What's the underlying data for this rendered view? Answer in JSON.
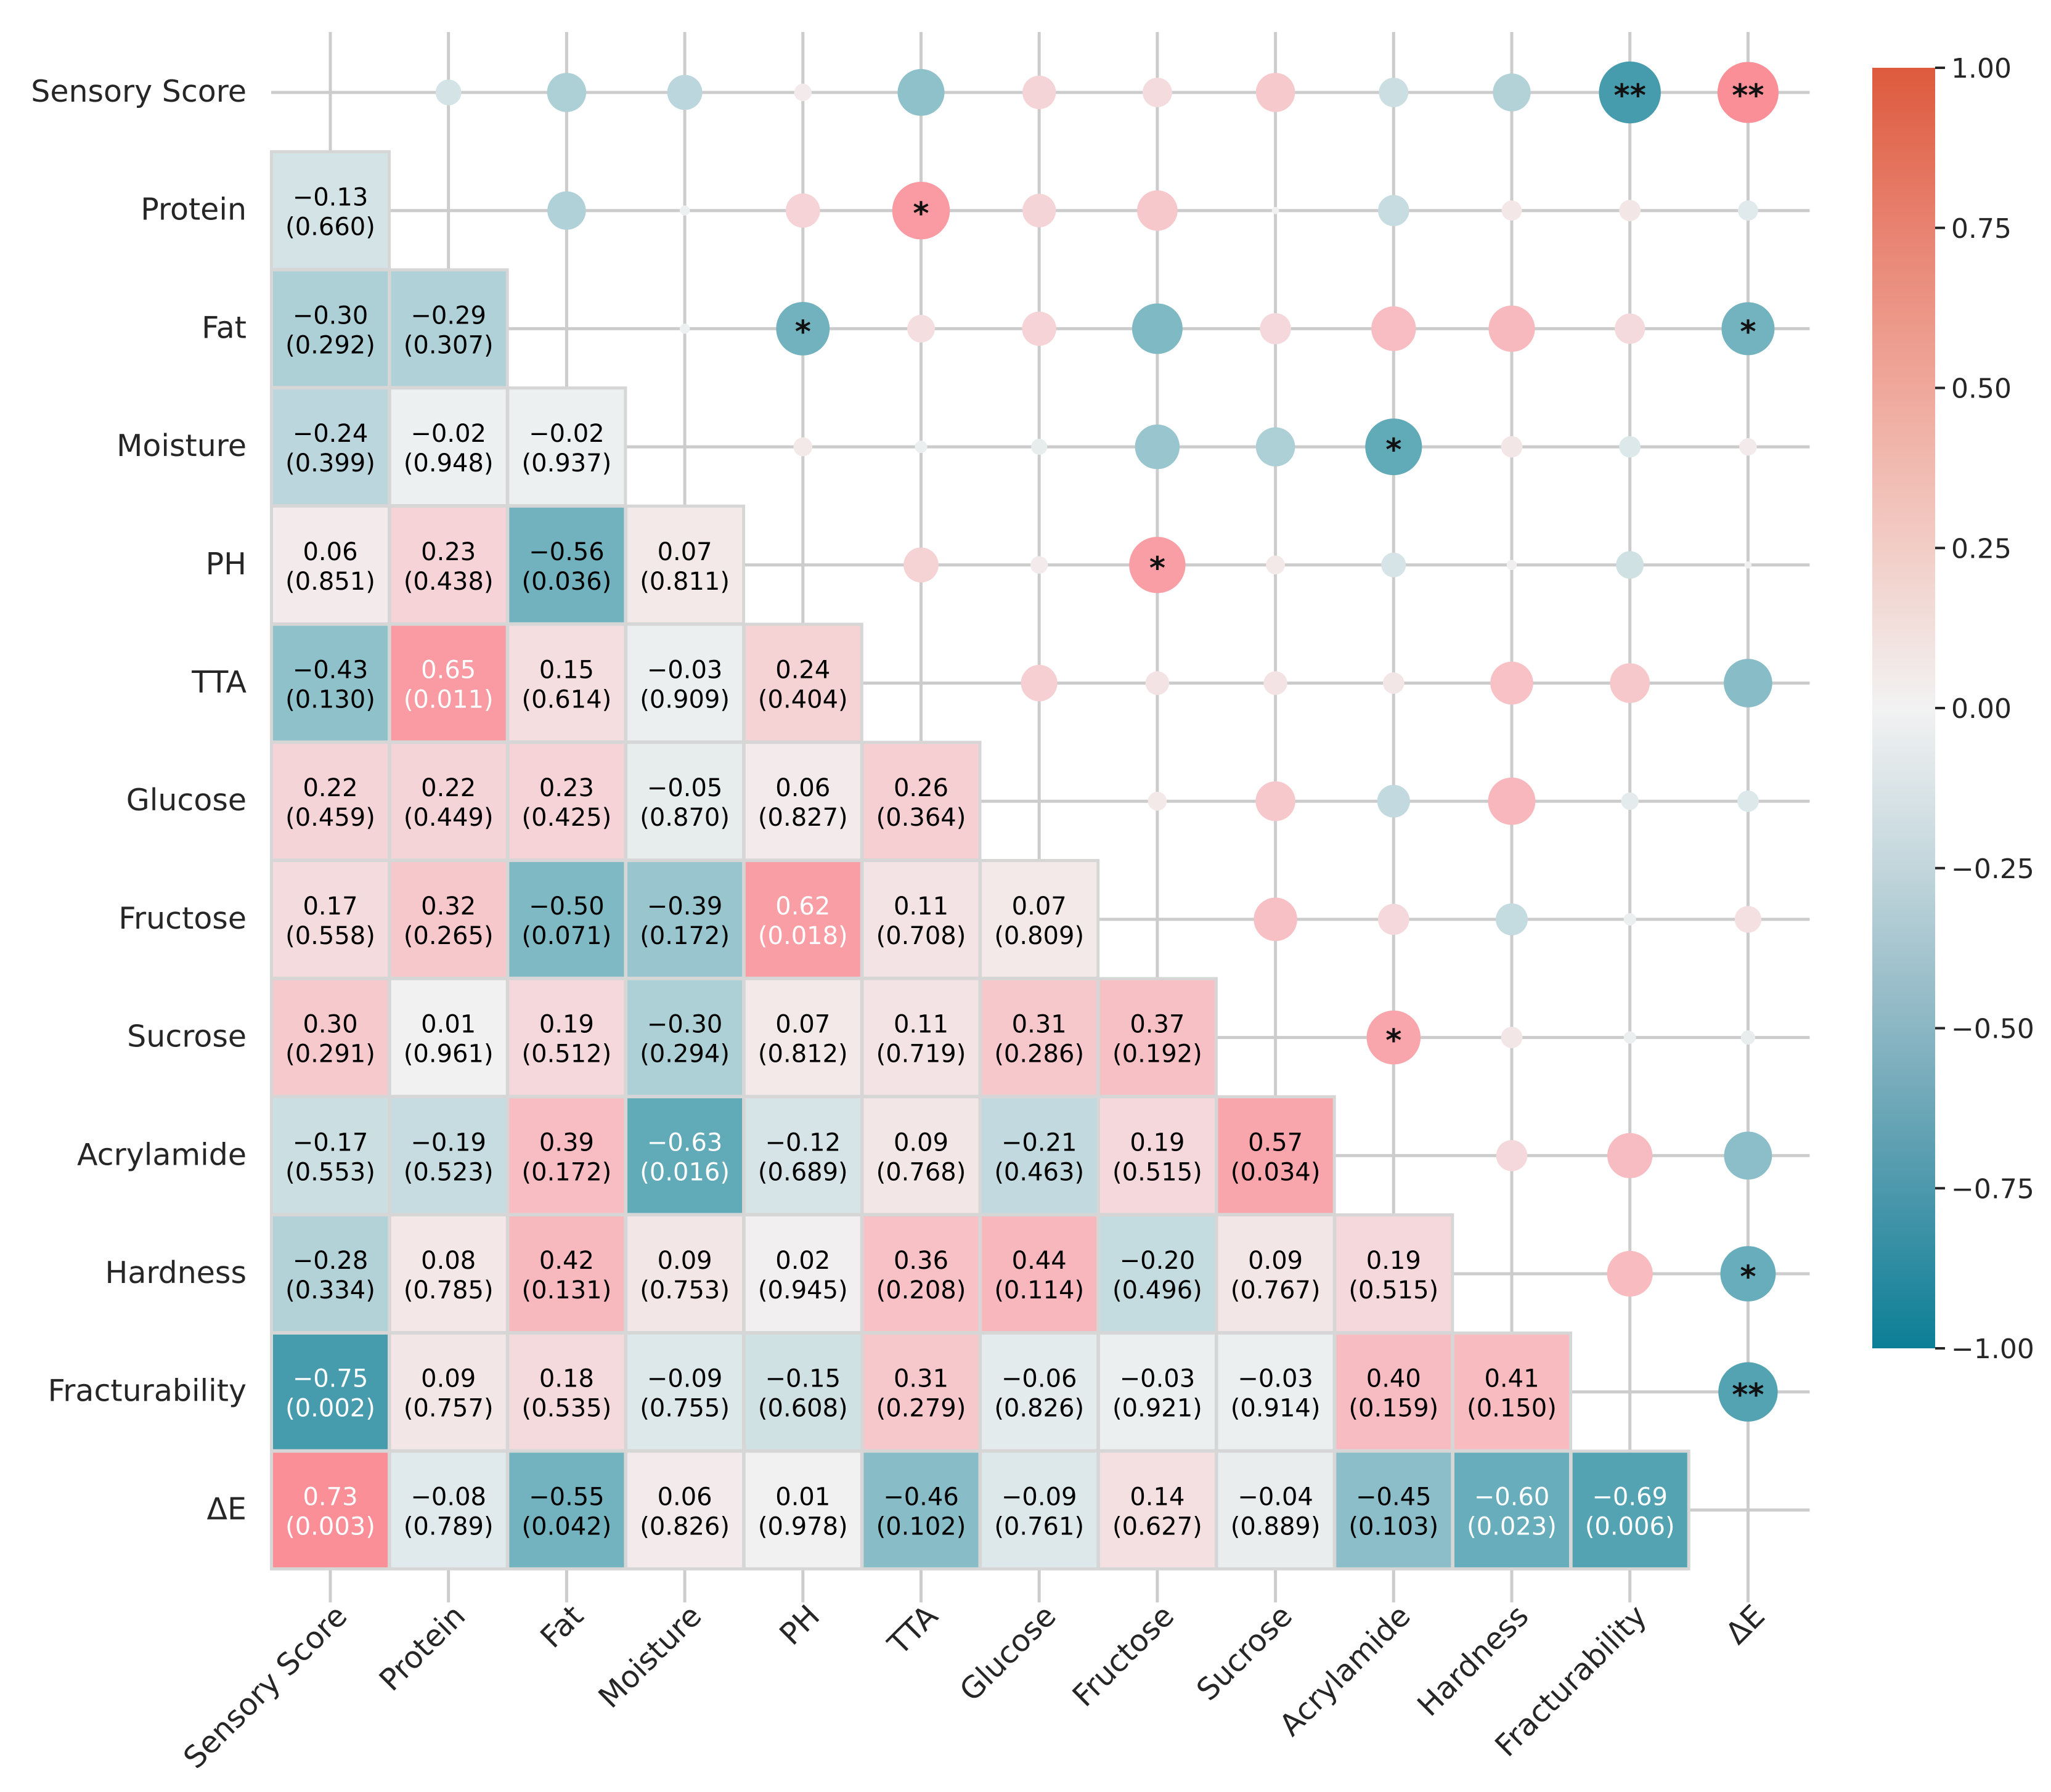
{
  "chart_data": {
    "type": "heatmap",
    "title": "",
    "variables": [
      "Sensory Score",
      "Protein",
      "Fat",
      "Moisture",
      "PH",
      "TTA",
      "Glucose",
      "Fructose",
      "Sucrose",
      "Acrylamide",
      "Hardness",
      "Fracturability",
      "ΔE"
    ],
    "lower_cells": [
      {
        "row": 1,
        "col": 0,
        "r": "−0.13",
        "p": "(0.660)"
      },
      {
        "row": 2,
        "col": 0,
        "r": "−0.30",
        "p": "(0.292)"
      },
      {
        "row": 2,
        "col": 1,
        "r": "−0.29",
        "p": "(0.307)"
      },
      {
        "row": 3,
        "col": 0,
        "r": "−0.24",
        "p": "(0.399)"
      },
      {
        "row": 3,
        "col": 1,
        "r": "−0.02",
        "p": "(0.948)"
      },
      {
        "row": 3,
        "col": 2,
        "r": "−0.02",
        "p": "(0.937)"
      },
      {
        "row": 4,
        "col": 0,
        "r": "0.06",
        "p": "(0.851)"
      },
      {
        "row": 4,
        "col": 1,
        "r": "0.23",
        "p": "(0.438)"
      },
      {
        "row": 4,
        "col": 2,
        "r": "−0.56",
        "p": "(0.036)"
      },
      {
        "row": 4,
        "col": 3,
        "r": "0.07",
        "p": "(0.811)"
      },
      {
        "row": 5,
        "col": 0,
        "r": "−0.43",
        "p": "(0.130)"
      },
      {
        "row": 5,
        "col": 1,
        "r": "0.65",
        "p": "(0.011)"
      },
      {
        "row": 5,
        "col": 2,
        "r": "0.15",
        "p": "(0.614)"
      },
      {
        "row": 5,
        "col": 3,
        "r": "−0.03",
        "p": "(0.909)"
      },
      {
        "row": 5,
        "col": 4,
        "r": "0.24",
        "p": "(0.404)"
      },
      {
        "row": 6,
        "col": 0,
        "r": "0.22",
        "p": "(0.459)"
      },
      {
        "row": 6,
        "col": 1,
        "r": "0.22",
        "p": "(0.449)"
      },
      {
        "row": 6,
        "col": 2,
        "r": "0.23",
        "p": "(0.425)"
      },
      {
        "row": 6,
        "col": 3,
        "r": "−0.05",
        "p": "(0.870)"
      },
      {
        "row": 6,
        "col": 4,
        "r": "0.06",
        "p": "(0.827)"
      },
      {
        "row": 6,
        "col": 5,
        "r": "0.26",
        "p": "(0.364)"
      },
      {
        "row": 7,
        "col": 0,
        "r": "0.17",
        "p": "(0.558)"
      },
      {
        "row": 7,
        "col": 1,
        "r": "0.32",
        "p": "(0.265)"
      },
      {
        "row": 7,
        "col": 2,
        "r": "−0.50",
        "p": "(0.071)"
      },
      {
        "row": 7,
        "col": 3,
        "r": "−0.39",
        "p": "(0.172)"
      },
      {
        "row": 7,
        "col": 4,
        "r": "0.62",
        "p": "(0.018)"
      },
      {
        "row": 7,
        "col": 5,
        "r": "0.11",
        "p": "(0.708)"
      },
      {
        "row": 7,
        "col": 6,
        "r": "0.07",
        "p": "(0.809)"
      },
      {
        "row": 8,
        "col": 0,
        "r": "0.30",
        "p": "(0.291)"
      },
      {
        "row": 8,
        "col": 1,
        "r": "0.01",
        "p": "(0.961)"
      },
      {
        "row": 8,
        "col": 2,
        "r": "0.19",
        "p": "(0.512)"
      },
      {
        "row": 8,
        "col": 3,
        "r": "−0.30",
        "p": "(0.294)"
      },
      {
        "row": 8,
        "col": 4,
        "r": "0.07",
        "p": "(0.812)"
      },
      {
        "row": 8,
        "col": 5,
        "r": "0.11",
        "p": "(0.719)"
      },
      {
        "row": 8,
        "col": 6,
        "r": "0.31",
        "p": "(0.286)"
      },
      {
        "row": 8,
        "col": 7,
        "r": "0.37",
        "p": "(0.192)"
      },
      {
        "row": 9,
        "col": 0,
        "r": "−0.17",
        "p": "(0.553)"
      },
      {
        "row": 9,
        "col": 1,
        "r": "−0.19",
        "p": "(0.523)"
      },
      {
        "row": 9,
        "col": 2,
        "r": "0.39",
        "p": "(0.172)"
      },
      {
        "row": 9,
        "col": 3,
        "r": "−0.63",
        "p": "(0.016)"
      },
      {
        "row": 9,
        "col": 4,
        "r": "−0.12",
        "p": "(0.689)"
      },
      {
        "row": 9,
        "col": 5,
        "r": "0.09",
        "p": "(0.768)"
      },
      {
        "row": 9,
        "col": 6,
        "r": "−0.21",
        "p": "(0.463)"
      },
      {
        "row": 9,
        "col": 7,
        "r": "0.19",
        "p": "(0.515)"
      },
      {
        "row": 9,
        "col": 8,
        "r": "0.57",
        "p": "(0.034)"
      },
      {
        "row": 10,
        "col": 0,
        "r": "−0.28",
        "p": "(0.334)"
      },
      {
        "row": 10,
        "col": 1,
        "r": "0.08",
        "p": "(0.785)"
      },
      {
        "row": 10,
        "col": 2,
        "r": "0.42",
        "p": "(0.131)"
      },
      {
        "row": 10,
        "col": 3,
        "r": "0.09",
        "p": "(0.753)"
      },
      {
        "row": 10,
        "col": 4,
        "r": "0.02",
        "p": "(0.945)"
      },
      {
        "row": 10,
        "col": 5,
        "r": "0.36",
        "p": "(0.208)"
      },
      {
        "row": 10,
        "col": 6,
        "r": "0.44",
        "p": "(0.114)"
      },
      {
        "row": 10,
        "col": 7,
        "r": "−0.20",
        "p": "(0.496)"
      },
      {
        "row": 10,
        "col": 8,
        "r": "0.09",
        "p": "(0.767)"
      },
      {
        "row": 10,
        "col": 9,
        "r": "0.19",
        "p": "(0.515)"
      },
      {
        "row": 11,
        "col": 0,
        "r": "−0.75",
        "p": "(0.002)"
      },
      {
        "row": 11,
        "col": 1,
        "r": "0.09",
        "p": "(0.757)"
      },
      {
        "row": 11,
        "col": 2,
        "r": "0.18",
        "p": "(0.535)"
      },
      {
        "row": 11,
        "col": 3,
        "r": "−0.09",
        "p": "(0.755)"
      },
      {
        "row": 11,
        "col": 4,
        "r": "−0.15",
        "p": "(0.608)"
      },
      {
        "row": 11,
        "col": 5,
        "r": "0.31",
        "p": "(0.279)"
      },
      {
        "row": 11,
        "col": 6,
        "r": "−0.06",
        "p": "(0.826)"
      },
      {
        "row": 11,
        "col": 7,
        "r": "−0.03",
        "p": "(0.921)"
      },
      {
        "row": 11,
        "col": 8,
        "r": "−0.03",
        "p": "(0.914)"
      },
      {
        "row": 11,
        "col": 9,
        "r": "0.40",
        "p": "(0.159)"
      },
      {
        "row": 11,
        "col": 10,
        "r": "0.41",
        "p": "(0.150)"
      },
      {
        "row": 12,
        "col": 0,
        "r": "0.73",
        "p": "(0.003)"
      },
      {
        "row": 12,
        "col": 1,
        "r": "−0.08",
        "p": "(0.789)"
      },
      {
        "row": 12,
        "col": 2,
        "r": "−0.55",
        "p": "(0.042)"
      },
      {
        "row": 12,
        "col": 3,
        "r": "0.06",
        "p": "(0.826)"
      },
      {
        "row": 12,
        "col": 4,
        "r": "0.01",
        "p": "(0.978)"
      },
      {
        "row": 12,
        "col": 5,
        "r": "−0.46",
        "p": "(0.102)"
      },
      {
        "row": 12,
        "col": 6,
        "r": "−0.09",
        "p": "(0.761)"
      },
      {
        "row": 12,
        "col": 7,
        "r": "0.14",
        "p": "(0.627)"
      },
      {
        "row": 12,
        "col": 8,
        "r": "−0.04",
        "p": "(0.889)"
      },
      {
        "row": 12,
        "col": 9,
        "r": "−0.45",
        "p": "(0.103)"
      },
      {
        "row": 12,
        "col": 10,
        "r": "−0.60",
        "p": "(0.023)"
      },
      {
        "row": 12,
        "col": 11,
        "r": "−0.69",
        "p": "(0.006)"
      }
    ],
    "significance_marks": [
      {
        "row": 0,
        "col": 11,
        "mark": "**"
      },
      {
        "row": 0,
        "col": 12,
        "mark": "**"
      },
      {
        "row": 1,
        "col": 5,
        "mark": "*"
      },
      {
        "row": 2,
        "col": 4,
        "mark": "*"
      },
      {
        "row": 2,
        "col": 12,
        "mark": "*"
      },
      {
        "row": 3,
        "col": 9,
        "mark": "*"
      },
      {
        "row": 4,
        "col": 7,
        "mark": "*"
      },
      {
        "row": 8,
        "col": 9,
        "mark": "*"
      },
      {
        "row": 10,
        "col": 12,
        "mark": "*"
      },
      {
        "row": 11,
        "col": 12,
        "mark": "**"
      }
    ],
    "colorbar": {
      "range": [
        -1.0,
        1.0
      ],
      "ticks": [
        "1.00",
        "0.75",
        "0.50",
        "0.25",
        "0.00",
        "−0.25",
        "−0.50",
        "−0.75",
        "−1.00"
      ],
      "tick_values": [
        1.0,
        0.75,
        0.5,
        0.25,
        0.0,
        -0.25,
        -0.5,
        -0.75,
        -1.0
      ],
      "negative_color": "#0c7f96",
      "neutral_color": "#f2f2f2",
      "positive_color": "#dd5a3d",
      "upper_positive_color": "#ff6b77"
    },
    "grid_color": "#cccccc",
    "cell_border_color": "#d6d6d6"
  }
}
